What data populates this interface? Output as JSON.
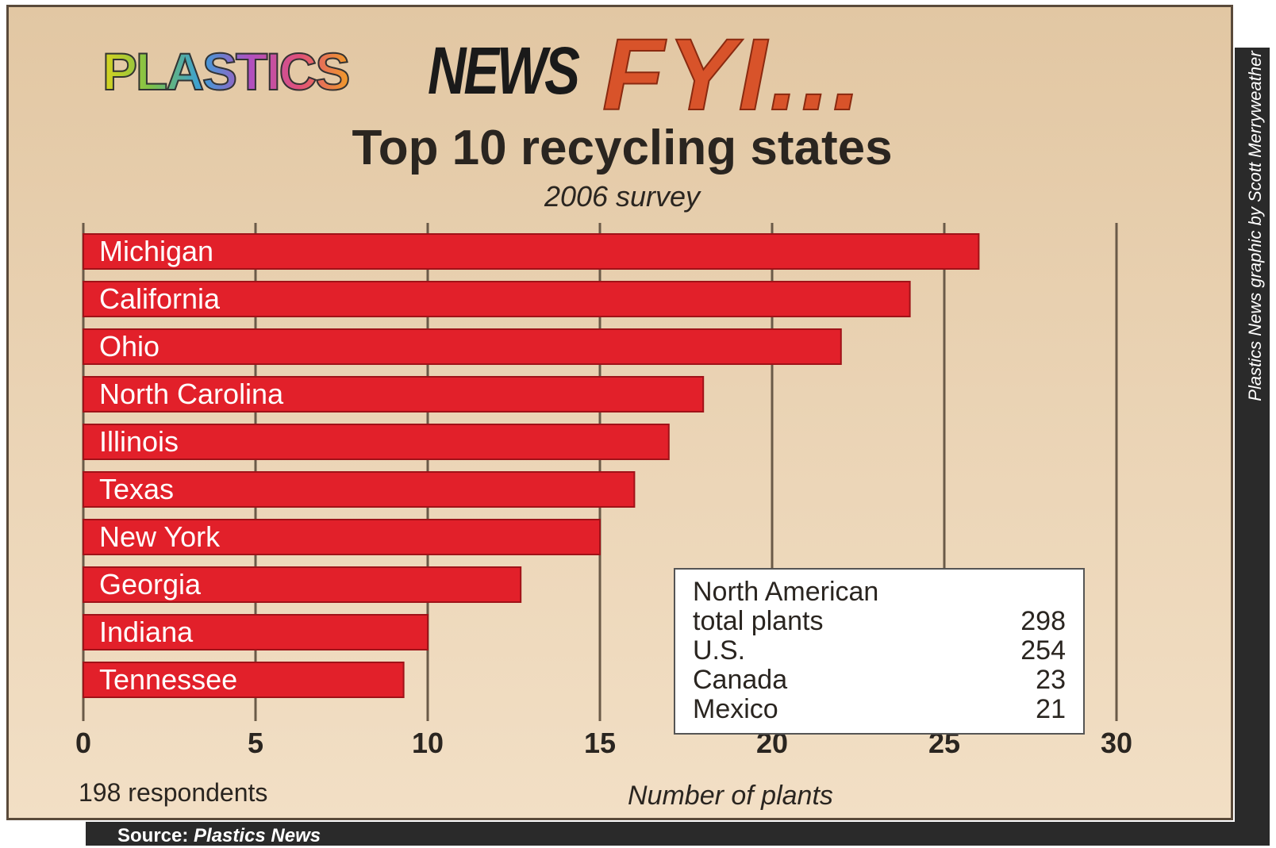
{
  "header": {
    "logo_plastics": "PLASTICS",
    "logo_news": "NEWS",
    "logo_fyi": "FYI..."
  },
  "credit": "Plastics News graphic by Scott Merryweather",
  "source": {
    "label": "Source:",
    "name": "Plastics News"
  },
  "respondents": "198 respondents",
  "summary_box": {
    "heading": "North American",
    "rows": [
      {
        "label": "total plants",
        "value": "298"
      },
      {
        "label": "U.S.",
        "value": "254"
      },
      {
        "label": "Canada",
        "value": "23"
      },
      {
        "label": "Mexico",
        "value": "21"
      }
    ]
  },
  "colors": {
    "bar": "#e2202a",
    "bar_edge": "#a01218",
    "grid": "#6a5a48",
    "bar_label": "#ffffff"
  },
  "chart_data": {
    "type": "bar",
    "orientation": "horizontal",
    "title": "Top 10 recycling states",
    "subtitle": "2006 survey",
    "xlabel": "Number of plants",
    "ylabel": "",
    "categories": [
      "Michigan",
      "California",
      "Ohio",
      "North Carolina",
      "Illinois",
      "Texas",
      "New York",
      "Georgia",
      "Indiana",
      "Tennessee"
    ],
    "values": [
      26,
      24,
      22,
      18,
      17,
      16,
      15,
      12.7,
      10,
      9.3
    ],
    "xlim": [
      0,
      30
    ],
    "xticks": [
      0,
      5,
      10,
      15,
      20,
      25,
      30
    ],
    "grid": "vertical"
  }
}
